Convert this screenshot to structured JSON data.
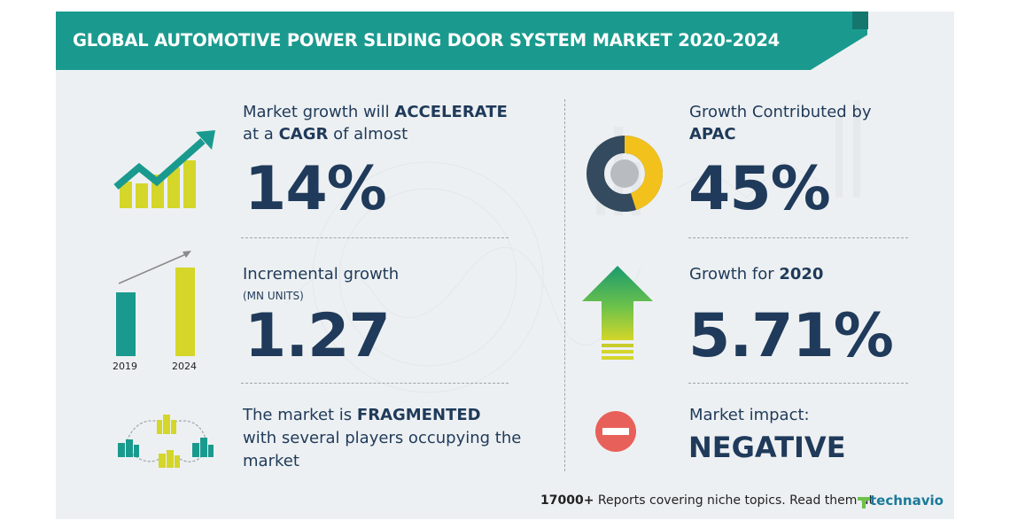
{
  "title": "GLOBAL AUTOMOTIVE POWER SLIDING DOOR SYSTEM MARKET 2020-2024",
  "cagr": {
    "line1_pre": "Market growth will ",
    "line1_bold": "ACCELERATE",
    "line2_pre": "at a ",
    "line2_bold": "CAGR",
    "line2_post": " of almost",
    "value": "14%"
  },
  "incremental": {
    "label": "Incremental growth",
    "unit": "(MN UNITS)",
    "value": "1.27",
    "bar_years": [
      "2019",
      "2024"
    ]
  },
  "structure": {
    "line1_pre": "The market is ",
    "line1_bold": "FRAGMENTED",
    "line2": "with several players occupying the",
    "line3": "market"
  },
  "region": {
    "label": "Growth Contributed by",
    "region_name": "APAC",
    "value": "45%",
    "share": 0.45
  },
  "yoy": {
    "label_pre": "Growth for ",
    "year": "2020",
    "value": "5.71%"
  },
  "impact": {
    "label": "Market impact:",
    "value": "NEGATIVE"
  },
  "footer": {
    "count": "17000+",
    "text": " Reports covering niche topics. Read them at",
    "brand": "technavio"
  },
  "colors": {
    "teal": "#1a9a8e",
    "navy": "#1f3a5a",
    "yellow": "#d4d62a",
    "donut_yellow": "#f3c11b",
    "donut_dark": "#344a5e",
    "red": "#e8605a",
    "green": "#6cc24a"
  }
}
